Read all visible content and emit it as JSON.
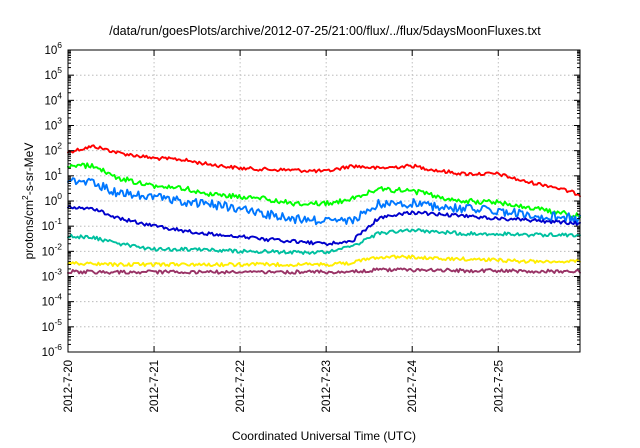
{
  "chart_data": {
    "type": "line",
    "title": "/data/run/goesPlots/archive/2012-07-25/21:00/flux/../flux/5daysMoonFluxes.txt",
    "xlabel": "Coordinated Universal Time (UTC)",
    "ylabel": {
      "prefix": "protons/cm",
      "superscript": "2",
      "suffix": "-s-sr-MeV"
    },
    "y_scale": "log",
    "ylim_exponents": [
      -6,
      6
    ],
    "y_tick_base": "10",
    "y_tick_exponents": [
      "-6",
      "-5",
      "-4",
      "-3",
      "-2",
      "-1",
      "0",
      "1",
      "2",
      "3",
      "4",
      "5",
      "6"
    ],
    "x_tick_labels": [
      "2012-7-20",
      "2012-7-21",
      "2012-7-22",
      "2012-7-23",
      "2012-7-24",
      "2012-7-25"
    ],
    "x_days_range": [
      0,
      5.95
    ],
    "grid": true,
    "series": [
      {
        "color": "#ff0000",
        "x": [
          0,
          0.3,
          0.6,
          1.0,
          1.3,
          1.6,
          2.0,
          2.3,
          2.6,
          3.0,
          3.3,
          3.6,
          4.0,
          4.3,
          4.6,
          5.0,
          5.3,
          5.6,
          5.95
        ],
        "y": [
          90,
          150,
          80,
          50,
          45,
          30,
          20,
          18,
          17,
          15,
          25,
          20,
          25,
          16,
          12,
          12,
          6,
          4,
          1.8
        ]
      },
      {
        "color": "#00ff00",
        "x": [
          0,
          0.3,
          0.6,
          1.0,
          1.3,
          1.6,
          2.0,
          2.3,
          2.6,
          3.0,
          3.3,
          3.6,
          4.0,
          4.3,
          4.6,
          5.0,
          5.3,
          5.6,
          5.95
        ],
        "y": [
          25,
          25,
          8,
          4,
          3.5,
          2,
          1.5,
          1.2,
          0.8,
          0.8,
          1.2,
          3,
          2.5,
          1.5,
          1,
          0.9,
          0.6,
          0.4,
          0.25
        ]
      },
      {
        "color": "#0077ff",
        "x": [
          0,
          0.3,
          0.6,
          1.0,
          1.3,
          1.6,
          2.0,
          2.3,
          2.6,
          3.0,
          3.3,
          3.6,
          4.0,
          4.3,
          4.6,
          5.0,
          5.3,
          5.6,
          5.95
        ],
        "y": [
          7,
          5,
          2,
          1.5,
          1,
          0.8,
          0.5,
          0.3,
          0.2,
          0.15,
          0.15,
          0.8,
          0.8,
          0.6,
          0.5,
          0.4,
          0.3,
          0.25,
          0.2
        ]
      },
      {
        "color": "#0000cc",
        "x": [
          0,
          0.3,
          0.6,
          1.0,
          1.3,
          1.6,
          2.0,
          2.3,
          2.6,
          3.0,
          3.3,
          3.6,
          4.0,
          4.3,
          4.6,
          5.0,
          5.3,
          5.6,
          5.95
        ],
        "y": [
          0.6,
          0.5,
          0.2,
          0.1,
          0.07,
          0.05,
          0.04,
          0.03,
          0.025,
          0.02,
          0.025,
          0.2,
          0.35,
          0.3,
          0.25,
          0.2,
          0.18,
          0.15,
          0.13
        ]
      },
      {
        "color": "#00c0a0",
        "x": [
          0,
          0.3,
          0.6,
          1.0,
          1.3,
          1.6,
          2.0,
          2.3,
          2.6,
          3.0,
          3.3,
          3.6,
          4.0,
          4.3,
          4.6,
          5.0,
          5.3,
          5.6,
          5.95
        ],
        "y": [
          0.04,
          0.035,
          0.02,
          0.012,
          0.012,
          0.012,
          0.01,
          0.01,
          0.009,
          0.009,
          0.015,
          0.05,
          0.07,
          0.06,
          0.05,
          0.05,
          0.045,
          0.045,
          0.045
        ]
      },
      {
        "color": "#ffee00",
        "x": [
          0,
          0.3,
          0.6,
          1.0,
          1.3,
          1.6,
          2.0,
          2.3,
          2.6,
          3.0,
          3.3,
          3.6,
          4.0,
          4.3,
          4.6,
          5.0,
          5.3,
          5.6,
          5.95
        ],
        "y": [
          0.0035,
          0.0032,
          0.003,
          0.003,
          0.003,
          0.003,
          0.003,
          0.003,
          0.003,
          0.003,
          0.0035,
          0.006,
          0.006,
          0.005,
          0.005,
          0.0045,
          0.004,
          0.004,
          0.004
        ]
      },
      {
        "color": "#993366",
        "x": [
          0,
          0.3,
          0.6,
          1.0,
          1.3,
          1.6,
          2.0,
          2.3,
          2.6,
          3.0,
          3.3,
          3.6,
          4.0,
          4.3,
          4.6,
          5.0,
          5.3,
          5.6,
          5.95
        ],
        "y": [
          0.0016,
          0.0015,
          0.0015,
          0.0015,
          0.0015,
          0.0015,
          0.0015,
          0.0015,
          0.0015,
          0.0015,
          0.0016,
          0.0018,
          0.0018,
          0.0018,
          0.0017,
          0.0017,
          0.0016,
          0.0016,
          0.0016
        ]
      }
    ]
  }
}
